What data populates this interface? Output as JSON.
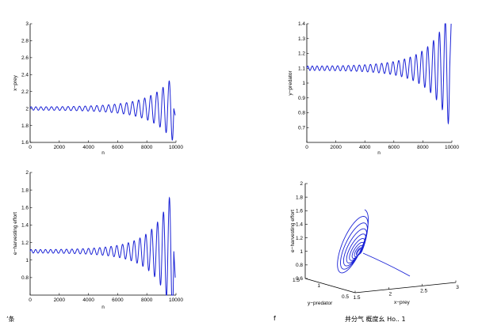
{
  "chart_data": [
    {
      "type": "line",
      "id": "prey-vs-n",
      "title": "",
      "xlabel": "n",
      "ylabel": "x−prey",
      "xlim": [
        0,
        10000
      ],
      "ylim": [
        1.6,
        3
      ],
      "xticks": [
        "0",
        "2000",
        "4000",
        "6000",
        "8000",
        "10000"
      ],
      "yticks": [
        "1.6",
        "1.8",
        "2",
        "2.2",
        "2.4",
        "2.6",
        "2.8",
        "3"
      ],
      "series": [
        {
          "baseline": 2.0,
          "start_amplitude": 0.02,
          "end_amplitude": 0.4,
          "oscillations": 25,
          "final_value": 1.92
        }
      ]
    },
    {
      "type": "line",
      "id": "predator-vs-n",
      "title": "",
      "xlabel": "n",
      "ylabel": "y−predator",
      "xlim": [
        0,
        10000
      ],
      "ylim": [
        0.6,
        1.4
      ],
      "xticks": [
        "0",
        "2000",
        "4000",
        "6000",
        "8000",
        "10000"
      ],
      "yticks": [
        "0.7",
        "0.8",
        "0.9",
        "1",
        "1.1",
        "1.2",
        "1.3",
        "1.4"
      ],
      "series": [
        {
          "baseline": 1.1,
          "start_amplitude": 0.015,
          "end_amplitude": 0.4,
          "oscillations": 26,
          "final_value": 1.4
        }
      ]
    },
    {
      "type": "line",
      "id": "effort-vs-n",
      "title": "",
      "xlabel": "n",
      "ylabel": "e−harvesting effort",
      "xlim": [
        0,
        10000
      ],
      "ylim": [
        0.6,
        2
      ],
      "xticks": [
        "0",
        "2000",
        "4000",
        "6000",
        "8000",
        "10000"
      ],
      "yticks": [
        "0.8",
        "1",
        "1.2",
        "1.4",
        "1.6",
        "1.8",
        "2"
      ],
      "series": [
        {
          "baseline": 1.1,
          "start_amplitude": 0.02,
          "end_amplitude": 0.78,
          "oscillations": 26,
          "final_value": 0.8
        }
      ]
    },
    {
      "type": "line3d",
      "id": "phase-portrait",
      "title": "",
      "xlabel": "x−prey",
      "ylabel": "y−predator",
      "zlabel": "e−harvesting effort",
      "xticks": [
        "1.5",
        "2",
        "2.5",
        "3"
      ],
      "yticks": [
        "0.5",
        "1",
        "1.5"
      ],
      "zticks": [
        "0.6",
        "0.8",
        "1",
        "1.2",
        "1.4",
        "1.6",
        "1.8",
        "2"
      ],
      "series": [
        {
          "center": [
            2.0,
            1.1,
            1.1
          ],
          "turns": 9
        }
      ]
    }
  ],
  "page_footer": {
    "fragment_left": "’条",
    "fragment_mid": "f",
    "fragment_right": "并分气 概度幺 Ho.. 1"
  }
}
